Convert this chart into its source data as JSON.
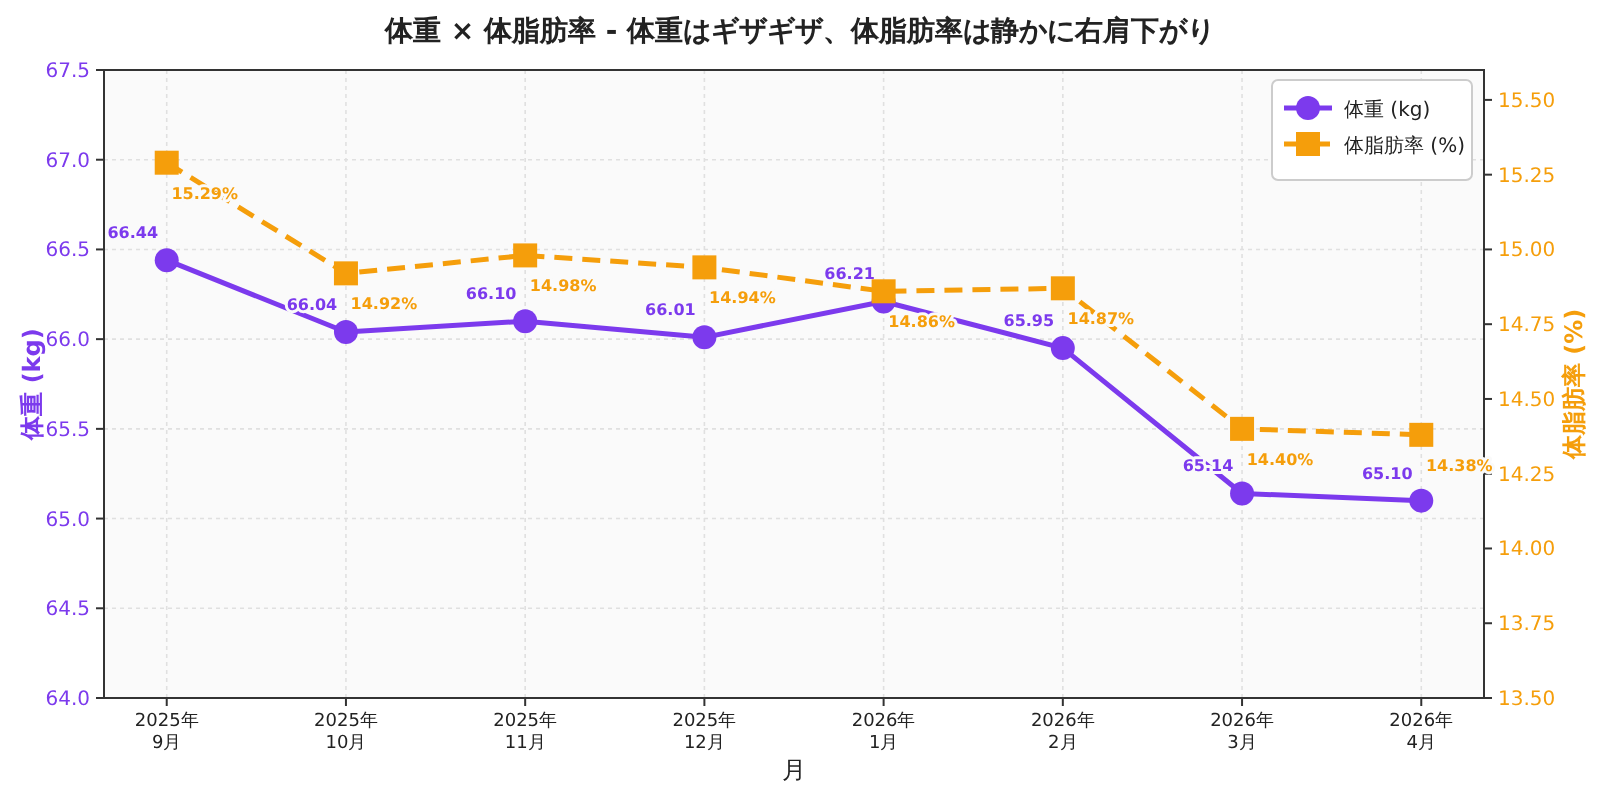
{
  "chart_data": {
    "type": "line",
    "title": "体重 × 体脂肪率 - 体重はギザギザ、体脂肪率は静かに右肩下がり",
    "xlabel": "月",
    "ylabel": "体重 (kg)",
    "y2label": "体脂肪率 (%)",
    "categories": [
      "2025年\n9月",
      "2025年\n10月",
      "2025年\n11月",
      "2025年\n12月",
      "2026年\n1月",
      "2026年\n2月",
      "2026年\n3月",
      "2026年\n4月"
    ],
    "series": [
      {
        "name": "体重 (kg)",
        "color": "#7c3aed",
        "marker": "circle",
        "line_style": "solid",
        "values": [
          66.44,
          66.04,
          66.1,
          66.01,
          66.21,
          65.95,
          65.14,
          65.1
        ],
        "value_labels": [
          "66.44",
          "66.04",
          "66.10",
          "66.01",
          "66.21",
          "65.95",
          "65.14",
          "65.10"
        ]
      },
      {
        "name": "体脂肪率 (%)",
        "color": "#f59e0b",
        "marker": "square",
        "line_style": "dashed",
        "axis": "y2",
        "values": [
          15.29,
          14.92,
          14.98,
          14.94,
          14.86,
          14.87,
          14.4,
          14.38
        ],
        "value_labels": [
          "15.29%",
          "14.92%",
          "14.98%",
          "14.94%",
          "14.86%",
          "14.87%",
          "14.40%",
          "14.38%"
        ]
      }
    ],
    "ylim": [
      64.0,
      67.5
    ],
    "yticks": [
      {
        "value": 64.0,
        "label": "64.0"
      },
      {
        "value": 64.5,
        "label": "64.5"
      },
      {
        "value": 65.0,
        "label": "65.0"
      },
      {
        "value": 65.5,
        "label": "65.5"
      },
      {
        "value": 66.0,
        "label": "66.0"
      },
      {
        "value": 66.5,
        "label": "66.5"
      },
      {
        "value": 67.0,
        "label": "67.0"
      },
      {
        "value": 67.5,
        "label": "67.5"
      }
    ],
    "y2lim": [
      13.5,
      15.6
    ],
    "y2ticks": [
      {
        "value": 13.5,
        "label": "13.50"
      },
      {
        "value": 13.75,
        "label": "13.75"
      },
      {
        "value": 14.0,
        "label": "14.00"
      },
      {
        "value": 14.25,
        "label": "14.25"
      },
      {
        "value": 14.5,
        "label": "14.50"
      },
      {
        "value": 14.75,
        "label": "14.75"
      },
      {
        "value": 15.0,
        "label": "15.00"
      },
      {
        "value": 15.25,
        "label": "15.25"
      },
      {
        "value": 15.5,
        "label": "15.50"
      }
    ],
    "grid": true,
    "legend": "top right"
  }
}
